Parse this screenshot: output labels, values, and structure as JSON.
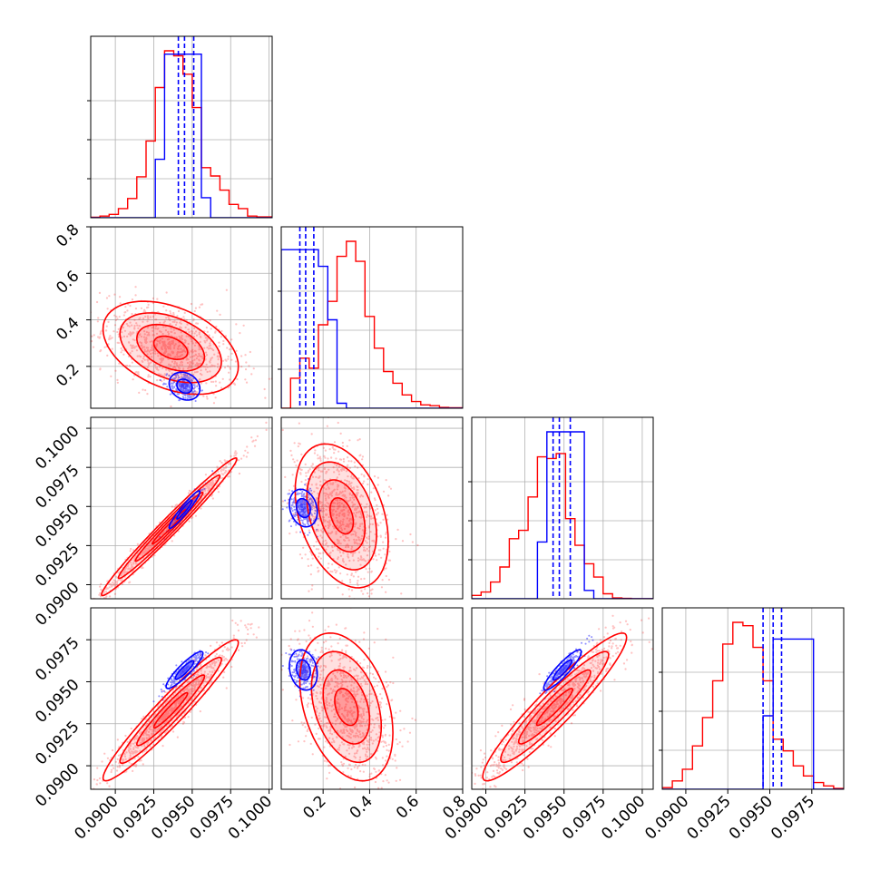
{
  "chart_data": {
    "type": "corner",
    "title": "",
    "parameters": [
      "",
      "",
      "",
      ""
    ],
    "colors": {
      "red": "#ff0000",
      "blue": "#0000ff"
    },
    "grid": true,
    "legend": "none",
    "ranges": [
      [
        0.0884,
        0.1002
      ],
      [
        0.02,
        0.8
      ],
      [
        0.0891,
        0.1007
      ],
      [
        0.0886,
        0.0994
      ]
    ],
    "ticks": [
      [
        "0.0900",
        "0.0925",
        "0.0950",
        "0.0975",
        "0.1000"
      ],
      [
        "0.2",
        "0.4",
        "0.6",
        "0.8"
      ],
      [
        "0.0900",
        "0.0925",
        "0.0950",
        "0.0975",
        "0.1000"
      ],
      [
        "0.0900",
        "0.0925",
        "0.0950",
        "0.0975"
      ]
    ],
    "tick_values": [
      [
        0.09,
        0.0925,
        0.095,
        0.0975,
        0.1
      ],
      [
        0.2,
        0.4,
        0.6,
        0.8
      ],
      [
        0.09,
        0.0925,
        0.095,
        0.0975,
        0.1
      ],
      [
        0.09,
        0.0925,
        0.095,
        0.0975
      ]
    ],
    "histograms": [
      {
        "bins": [
          0.0884,
          0.089,
          0.0896,
          0.0902,
          0.0908,
          0.0914,
          0.092,
          0.0926,
          0.0932,
          0.0938,
          0.0944,
          0.095,
          0.0956,
          0.0962,
          0.0968,
          0.0974,
          0.098,
          0.0986,
          0.0992,
          0.1002
        ],
        "red": [
          0.003,
          0.01,
          0.02,
          0.055,
          0.115,
          0.245,
          0.46,
          0.78,
          1.0,
          0.97,
          0.86,
          0.66,
          0.3,
          0.25,
          0.165,
          0.08,
          0.055,
          0.01,
          0.005
        ],
        "blue": [
          0,
          0,
          0,
          0,
          0,
          0,
          0,
          0.35,
          0.98,
          0.98,
          0.98,
          0.98,
          0.12,
          0,
          0,
          0,
          0,
          0,
          0
        ],
        "blue_quantiles": [
          0.0941,
          0.0945,
          0.0951
        ]
      },
      {
        "bins": [
          0.02,
          0.06,
          0.1,
          0.14,
          0.18,
          0.22,
          0.26,
          0.3,
          0.34,
          0.38,
          0.42,
          0.46,
          0.5,
          0.54,
          0.58,
          0.62,
          0.66,
          0.7,
          0.74,
          0.8
        ],
        "red": [
          0,
          0.18,
          0.3,
          0.24,
          0.5,
          0.64,
          0.91,
          1.0,
          0.88,
          0.55,
          0.36,
          0.22,
          0.15,
          0.08,
          0.04,
          0.02,
          0.015,
          0.005,
          0.003
        ],
        "blue": [
          0.95,
          0.95,
          0.95,
          0.95,
          0.85,
          0.53,
          0.03,
          0,
          0,
          0,
          0,
          0,
          0,
          0,
          0,
          0,
          0,
          0,
          0
        ],
        "blue_quantiles": [
          0.1,
          0.125,
          0.16
        ]
      },
      {
        "bins": [
          0.0891,
          0.0897,
          0.0903,
          0.0909,
          0.0915,
          0.0921,
          0.0927,
          0.0933,
          0.0939,
          0.0945,
          0.0951,
          0.0957,
          0.0963,
          0.0969,
          0.0975,
          0.0981,
          0.0987,
          0.0993,
          0.1,
          0.1007
        ],
        "red": [
          0.02,
          0.04,
          0.1,
          0.19,
          0.36,
          0.41,
          0.61,
          0.85,
          0.84,
          0.87,
          0.48,
          0.32,
          0.21,
          0.13,
          0.03,
          0.005,
          0.002,
          0,
          0
        ],
        "blue": [
          0,
          0,
          0,
          0,
          0,
          0,
          0,
          0.34,
          1.0,
          1.0,
          1.0,
          1.0,
          0.05,
          0,
          0,
          0,
          0,
          0,
          0
        ],
        "blue_quantiles": [
          0.0943,
          0.0947,
          0.0954
        ]
      },
      {
        "bins": [
          0.0886,
          0.0892,
          0.0898,
          0.0904,
          0.091,
          0.0916,
          0.0922,
          0.0928,
          0.0934,
          0.094,
          0.0946,
          0.0952,
          0.0958,
          0.0964,
          0.097,
          0.0976,
          0.0982,
          0.0988,
          0.0994
        ],
        "red": [
          0.01,
          0.05,
          0.12,
          0.26,
          0.43,
          0.65,
          0.87,
          1.0,
          0.98,
          0.85,
          0.65,
          0.3,
          0.23,
          0.14,
          0.08,
          0.04,
          0.02,
          0.005
        ],
        "blue": [
          0,
          0,
          0,
          0,
          0,
          0,
          0,
          0,
          0,
          0,
          0.44,
          0.9,
          0.9,
          0.9,
          0.9,
          0,
          0,
          0
        ],
        "blue_quantiles": [
          0.0946,
          0.0952,
          0.0957
        ]
      }
    ],
    "pairs": [
      {
        "x": 0,
        "y": 1,
        "red": {
          "mean": [
            0.0936,
            0.28
          ],
          "sd": [
            0.0022,
            0.1
          ],
          "corr": -0.4,
          "levels": [
            0.5,
            1.0,
            1.5,
            2.0
          ]
        },
        "blue": {
          "mean": [
            0.0945,
            0.115
          ],
          "sd": [
            0.0005,
            0.03
          ],
          "corr": -0.2,
          "levels": [
            1.0,
            2.0
          ]
        }
      },
      {
        "x": 0,
        "y": 2,
        "red": {
          "mean": [
            0.0935,
            0.0937
          ],
          "sd": [
            0.0022,
            0.0022
          ],
          "corr": 0.985,
          "levels": [
            0.5,
            1.0,
            1.5,
            2.0
          ]
        },
        "blue": {
          "mean": [
            0.0945,
            0.0948
          ],
          "sd": [
            0.0005,
            0.0006
          ],
          "corr": 0.95,
          "levels": [
            1.0,
            2.0
          ]
        }
      },
      {
        "x": 0,
        "y": 3,
        "red": {
          "mean": [
            0.0936,
            0.0933
          ],
          "sd": [
            0.0022,
            0.0021
          ],
          "corr": 0.96,
          "levels": [
            0.5,
            1.0,
            1.5,
            2.0
          ]
        },
        "blue": {
          "mean": [
            0.0945,
            0.0957
          ],
          "sd": [
            0.0006,
            0.00055
          ],
          "corr": 0.9,
          "levels": [
            1.0,
            2.0
          ]
        }
      },
      {
        "x": 1,
        "y": 2,
        "red": {
          "mean": [
            0.28,
            0.0944
          ],
          "sd": [
            0.1,
            0.0023
          ],
          "corr": -0.35,
          "levels": [
            0.5,
            1.0,
            1.5,
            2.0
          ]
        },
        "blue": {
          "mean": [
            0.115,
            0.0949
          ],
          "sd": [
            0.03,
            0.0006
          ],
          "corr": -0.2,
          "levels": [
            1.0,
            2.0
          ]
        }
      },
      {
        "x": 1,
        "y": 3,
        "red": {
          "mean": [
            0.3,
            0.0935
          ],
          "sd": [
            0.1,
            0.0022
          ],
          "corr": -0.35,
          "levels": [
            0.5,
            1.0,
            1.5,
            2.0
          ]
        },
        "blue": {
          "mean": [
            0.115,
            0.0957
          ],
          "sd": [
            0.03,
            0.0006
          ],
          "corr": -0.2,
          "levels": [
            1.0,
            2.0
          ]
        }
      },
      {
        "x": 2,
        "y": 3,
        "red": {
          "mean": [
            0.0944,
            0.0935
          ],
          "sd": [
            0.0023,
            0.0022
          ],
          "corr": 0.94,
          "levels": [
            0.5,
            1.0,
            1.5,
            2.0
          ]
        },
        "blue": {
          "mean": [
            0.0949,
            0.0957
          ],
          "sd": [
            0.0006,
            0.0006
          ],
          "corr": 0.9,
          "levels": [
            1.0,
            2.0
          ]
        }
      }
    ]
  }
}
